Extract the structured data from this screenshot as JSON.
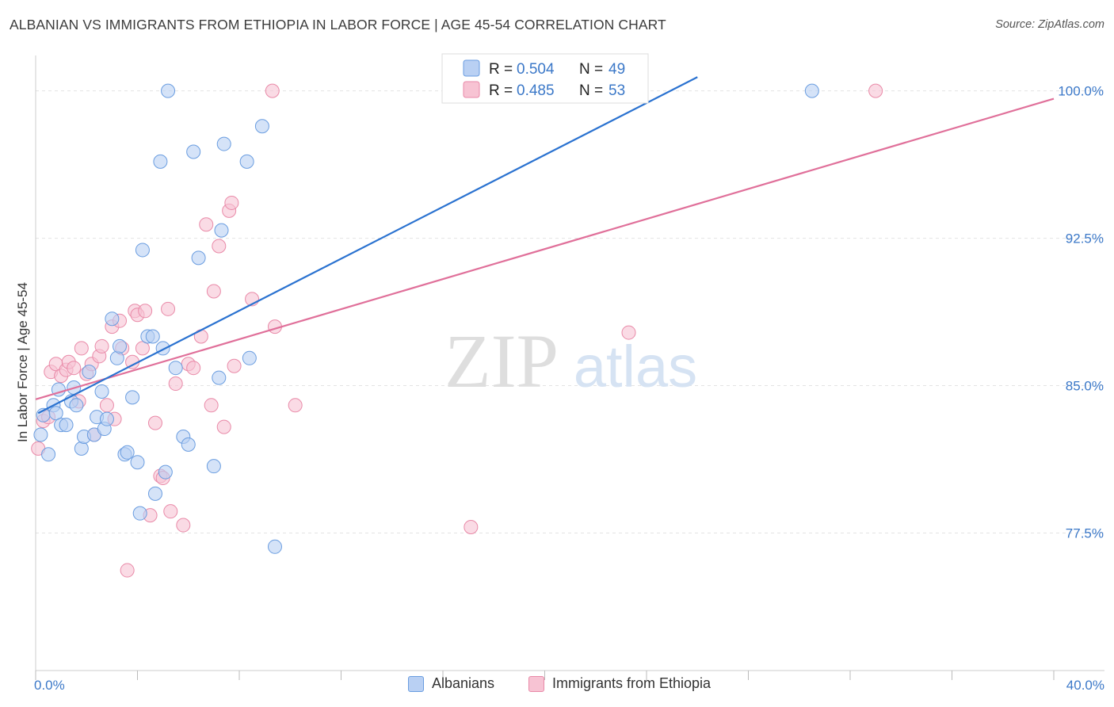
{
  "title": "ALBANIAN VS IMMIGRANTS FROM ETHIOPIA IN LABOR FORCE | AGE 45-54 CORRELATION CHART",
  "source": "Source: ZipAtlas.com",
  "watermark": {
    "zip": "ZIP",
    "atlas": "atlas"
  },
  "colors": {
    "blue_fill": "#b9d0f3",
    "blue_stroke": "#6a9de0",
    "blue_line": "#2a72d0",
    "pink_fill": "#f7c3d3",
    "pink_stroke": "#e98aa8",
    "pink_line": "#e0709a",
    "axis_text": "#3b78c8",
    "grid": "#e3e3e3"
  },
  "chart_data": {
    "type": "scatter",
    "title": "ALBANIAN VS IMMIGRANTS FROM ETHIOPIA IN LABOR FORCE | AGE 45-54 CORRELATION CHART",
    "xlabel": "",
    "ylabel": "In Labor Force | Age 45-54",
    "xlim": [
      0,
      40
    ],
    "ylim": [
      70.5,
      101.8
    ],
    "x_tick_labels": [
      {
        "value": 0,
        "label": "0.0%"
      },
      {
        "value": 40,
        "label": "40.0%"
      }
    ],
    "y_tick_labels": [
      {
        "value": 100,
        "label": "100.0%"
      },
      {
        "value": 92.5,
        "label": "92.5%"
      },
      {
        "value": 85,
        "label": "85.0%"
      },
      {
        "value": 77.5,
        "label": "77.5%"
      }
    ],
    "legend": [
      {
        "series": "Albanians",
        "r_label": "R =",
        "r_value": "0.504",
        "n_label": "N =",
        "n_value": "49"
      },
      {
        "series": "Immigrants from Ethiopia",
        "r_label": "R =",
        "r_value": "0.485",
        "n_label": "N =",
        "n_value": "53"
      }
    ],
    "series": [
      {
        "name": "Albanians",
        "trend": {
          "x": [
            0.1,
            26.0
          ],
          "y": [
            83.6,
            100.7
          ]
        },
        "points": [
          [
            0.2,
            82.5
          ],
          [
            0.3,
            83.5
          ],
          [
            0.5,
            81.5
          ],
          [
            0.7,
            84.0
          ],
          [
            0.8,
            83.6
          ],
          [
            0.9,
            84.8
          ],
          [
            1.0,
            83.0
          ],
          [
            1.2,
            83.0
          ],
          [
            1.4,
            84.2
          ],
          [
            1.5,
            84.9
          ],
          [
            1.6,
            84.0
          ],
          [
            1.8,
            81.8
          ],
          [
            1.9,
            82.4
          ],
          [
            2.1,
            85.7
          ],
          [
            2.3,
            82.5
          ],
          [
            2.4,
            83.4
          ],
          [
            2.6,
            84.7
          ],
          [
            2.7,
            82.8
          ],
          [
            2.8,
            83.3
          ],
          [
            3.0,
            88.4
          ],
          [
            3.2,
            86.4
          ],
          [
            3.3,
            87.0
          ],
          [
            3.5,
            81.5
          ],
          [
            3.6,
            81.6
          ],
          [
            3.8,
            84.4
          ],
          [
            4.0,
            81.1
          ],
          [
            4.1,
            78.5
          ],
          [
            4.2,
            91.9
          ],
          [
            4.4,
            87.5
          ],
          [
            4.6,
            87.5
          ],
          [
            4.7,
            79.5
          ],
          [
            4.9,
            96.4
          ],
          [
            5.0,
            86.9
          ],
          [
            5.1,
            80.6
          ],
          [
            5.2,
            100.0
          ],
          [
            5.5,
            85.9
          ],
          [
            5.8,
            82.4
          ],
          [
            6.0,
            82.0
          ],
          [
            6.2,
            96.9
          ],
          [
            6.4,
            91.5
          ],
          [
            7.0,
            80.9
          ],
          [
            7.2,
            85.4
          ],
          [
            7.3,
            92.9
          ],
          [
            7.4,
            97.3
          ],
          [
            8.3,
            96.4
          ],
          [
            8.4,
            86.4
          ],
          [
            8.9,
            98.2
          ],
          [
            9.4,
            76.8
          ],
          [
            30.5,
            100.0
          ]
        ]
      },
      {
        "name": "Immigrants from Ethiopia",
        "trend": {
          "x": [
            0.0,
            40.0
          ],
          "y": [
            84.3,
            99.6
          ]
        },
        "points": [
          [
            0.1,
            81.8
          ],
          [
            0.3,
            83.2
          ],
          [
            0.5,
            83.4
          ],
          [
            0.6,
            85.7
          ],
          [
            0.8,
            86.1
          ],
          [
            1.0,
            85.5
          ],
          [
            1.2,
            85.8
          ],
          [
            1.3,
            86.2
          ],
          [
            1.5,
            85.9
          ],
          [
            1.7,
            84.2
          ],
          [
            1.8,
            86.9
          ],
          [
            2.0,
            85.6
          ],
          [
            2.2,
            86.1
          ],
          [
            2.3,
            82.5
          ],
          [
            2.5,
            86.5
          ],
          [
            2.6,
            87.0
          ],
          [
            2.8,
            84.0
          ],
          [
            3.0,
            88.0
          ],
          [
            3.1,
            83.3
          ],
          [
            3.3,
            88.3
          ],
          [
            3.4,
            86.9
          ],
          [
            3.6,
            75.6
          ],
          [
            3.8,
            86.2
          ],
          [
            3.9,
            88.8
          ],
          [
            4.0,
            88.6
          ],
          [
            4.2,
            86.9
          ],
          [
            4.3,
            88.8
          ],
          [
            4.5,
            78.4
          ],
          [
            4.7,
            83.1
          ],
          [
            4.9,
            80.4
          ],
          [
            5.0,
            80.3
          ],
          [
            5.2,
            88.9
          ],
          [
            5.3,
            78.6
          ],
          [
            5.5,
            85.1
          ],
          [
            5.8,
            77.9
          ],
          [
            6.0,
            86.1
          ],
          [
            6.2,
            85.9
          ],
          [
            6.5,
            87.5
          ],
          [
            6.7,
            93.2
          ],
          [
            6.9,
            84.0
          ],
          [
            7.0,
            89.8
          ],
          [
            7.2,
            92.1
          ],
          [
            7.4,
            82.9
          ],
          [
            7.6,
            93.9
          ],
          [
            7.7,
            94.3
          ],
          [
            7.8,
            86.0
          ],
          [
            8.5,
            89.4
          ],
          [
            9.3,
            100.0
          ],
          [
            9.4,
            88.0
          ],
          [
            10.2,
            84.0
          ],
          [
            17.1,
            77.8
          ],
          [
            23.3,
            87.7
          ],
          [
            33.0,
            100.0
          ]
        ]
      }
    ]
  }
}
